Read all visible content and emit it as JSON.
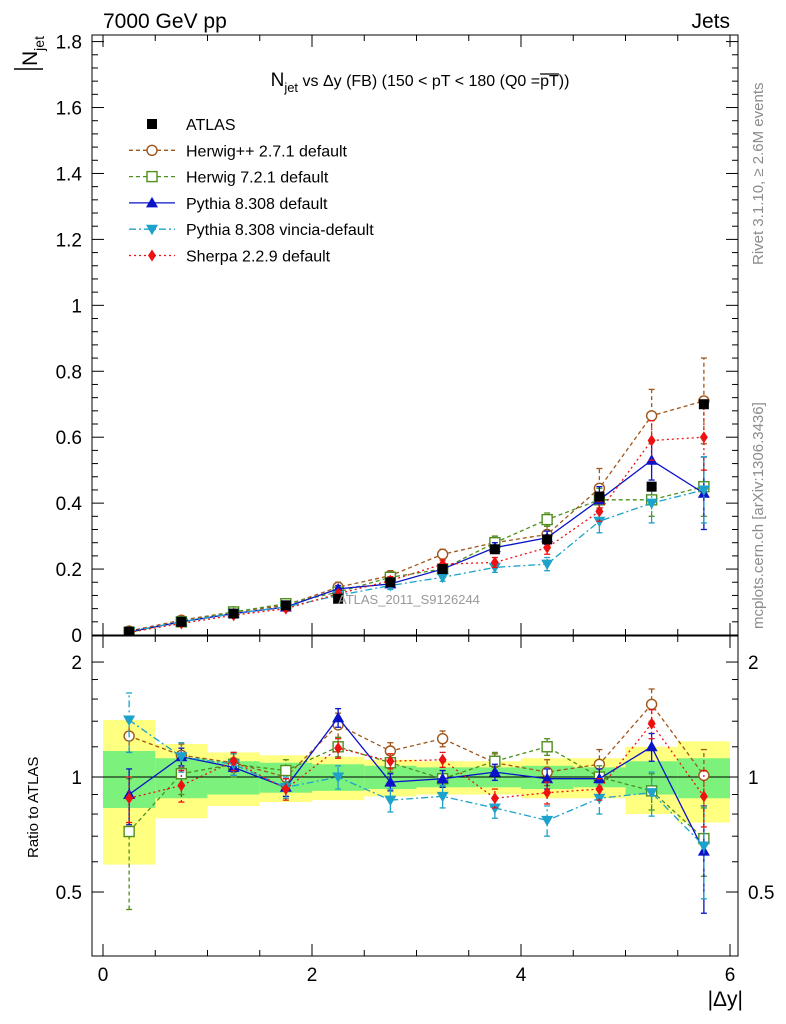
{
  "header": {
    "left": "7000 GeV pp",
    "right": "Jets"
  },
  "side_labels": {
    "rivet": "Rivet 3.1.10, ≥ 2.6M events",
    "mcplots": "mcplots.cern.ch [arXiv:1306.3436]"
  },
  "watermark": "ATLAS_2011_S9126244",
  "chart_data": {
    "type": "scatter",
    "title": {
      "main": "N",
      "sub": "jet",
      "rest": " vs Δy (FB) (150 < pT < 180 (Q0 =",
      "bar": "pT",
      "close": "))"
    },
    "ylabel": {
      "top": "N",
      "sub": "jet"
    },
    "xlabel": "|Δy|",
    "ratio_ylabel": "Ratio to ATLAS",
    "xlim": [
      -0.1,
      6.1
    ],
    "ylim": [
      0,
      1.82
    ],
    "ratio_ylim": [
      0.34,
      2.34
    ],
    "x_ticks": [
      0,
      2,
      4,
      6
    ],
    "y_ticks": [
      0,
      0.2,
      0.4,
      0.6,
      0.8,
      1,
      1.2,
      1.4,
      1.6,
      1.8
    ],
    "y_tick_labels": [
      "0",
      "0.2",
      "0.4",
      "0.6",
      "0.8",
      "1",
      "1.2",
      "1.4",
      "1.6",
      "1.8"
    ],
    "ratio_ticks": [
      0.5,
      1,
      2
    ],
    "ratio_tick_labels": [
      "0.5",
      "1",
      "2"
    ],
    "x": [
      0.25,
      0.75,
      1.25,
      1.75,
      2.25,
      2.75,
      3.25,
      3.75,
      4.25,
      4.75,
      5.25,
      5.75
    ],
    "bin_edges": [
      0,
      0.5,
      1,
      1.5,
      2,
      2.5,
      3,
      3.5,
      4,
      4.5,
      5,
      5.5,
      6
    ],
    "reference": {
      "name": "ATLAS",
      "color": "#000000",
      "marker": "square",
      "values": [
        0.01,
        0.04,
        0.065,
        0.09,
        0.11,
        0.16,
        0.2,
        0.26,
        0.29,
        0.42,
        0.45,
        0.7
      ],
      "band_green": [
        0.17,
        0.12,
        0.1,
        0.09,
        0.08,
        0.07,
        0.06,
        0.06,
        0.07,
        0.06,
        0.1,
        0.12
      ],
      "band_yellow": [
        0.41,
        0.22,
        0.16,
        0.14,
        0.13,
        0.11,
        0.1,
        0.1,
        0.12,
        0.12,
        0.2,
        0.24
      ]
    },
    "series": [
      {
        "name": "Herwig++ 2.7.1 default",
        "color": "#a0561a",
        "marker": "circle-open",
        "dash": "4,3",
        "values": [
          0.012,
          0.045,
          0.07,
          0.09,
          0.145,
          0.18,
          0.245,
          0.28,
          0.305,
          0.445,
          0.665,
          0.71
        ],
        "errors": [
          0.003,
          0.005,
          0.005,
          0.01,
          0.015,
          0.015,
          0.015,
          0.02,
          0.025,
          0.06,
          0.08,
          0.13
        ],
        "ratio": [
          1.28,
          1.14,
          1.09,
          1.0,
          1.37,
          1.17,
          1.26,
          1.09,
          1.03,
          1.08,
          1.55,
          1.01
        ],
        "ratio_errors": [
          0.12,
          0.08,
          0.06,
          0.07,
          0.1,
          0.06,
          0.06,
          0.06,
          0.08,
          0.1,
          0.15,
          0.17
        ]
      },
      {
        "name": "Herwig 7.2.1 default",
        "color": "#4e8f1e",
        "marker": "square-open",
        "dash": "4,3",
        "values": [
          0.008,
          0.04,
          0.07,
          0.095,
          0.13,
          0.175,
          0.2,
          0.28,
          0.35,
          0.41,
          0.41,
          0.45
        ],
        "errors": [
          0.003,
          0.005,
          0.005,
          0.01,
          0.01,
          0.015,
          0.015,
          0.02,
          0.02,
          0.035,
          0.05,
          0.09
        ],
        "ratio": [
          0.72,
          1.02,
          1.08,
          1.04,
          1.2,
          1.09,
          0.99,
          1.1,
          1.2,
          1.0,
          0.92,
          0.69
        ],
        "ratio_errors": [
          0.27,
          0.12,
          0.08,
          0.07,
          0.07,
          0.06,
          0.05,
          0.06,
          0.06,
          0.07,
          0.1,
          0.14
        ]
      },
      {
        "name": "Pythia 8.308 default",
        "color": "#0a13c8",
        "marker": "triangle-up",
        "dash": "",
        "values": [
          0.01,
          0.04,
          0.065,
          0.085,
          0.14,
          0.155,
          0.2,
          0.265,
          0.295,
          0.41,
          0.53,
          0.43
        ],
        "errors": [
          0.003,
          0.005,
          0.005,
          0.008,
          0.01,
          0.012,
          0.015,
          0.015,
          0.02,
          0.04,
          0.06,
          0.11
        ],
        "ratio": [
          0.9,
          1.13,
          1.06,
          0.94,
          1.43,
          0.97,
          0.99,
          1.03,
          0.99,
          0.99,
          1.2,
          0.64
        ],
        "ratio_errors": [
          0.15,
          0.06,
          0.05,
          0.05,
          0.08,
          0.05,
          0.05,
          0.05,
          0.06,
          0.06,
          0.1,
          0.2
        ]
      },
      {
        "name": "Pythia 8.308 vincia-default",
        "color": "#1da2c9",
        "marker": "triangle-down",
        "dash": "7,3,2,3",
        "values": [
          0.01,
          0.04,
          0.065,
          0.085,
          0.12,
          0.15,
          0.175,
          0.205,
          0.215,
          0.345,
          0.4,
          0.44
        ],
        "errors": [
          0.003,
          0.005,
          0.005,
          0.008,
          0.01,
          0.012,
          0.012,
          0.015,
          0.02,
          0.035,
          0.06,
          0.1
        ],
        "ratio": [
          1.41,
          1.13,
          1.08,
          0.94,
          1.0,
          0.87,
          0.89,
          0.83,
          0.77,
          0.88,
          0.91,
          0.66
        ],
        "ratio_errors": [
          0.25,
          0.1,
          0.07,
          0.06,
          0.07,
          0.06,
          0.06,
          0.05,
          0.07,
          0.08,
          0.12,
          0.18
        ]
      },
      {
        "name": "Sherpa 2.2.9 default",
        "color": "#ee1111",
        "marker": "diamond",
        "dash": "2,3",
        "values": [
          0.008,
          0.035,
          0.06,
          0.08,
          0.125,
          0.165,
          0.215,
          0.22,
          0.265,
          0.375,
          0.59,
          0.6
        ],
        "errors": [
          0.003,
          0.005,
          0.005,
          0.008,
          0.01,
          0.012,
          0.012,
          0.015,
          0.02,
          0.03,
          0.06,
          0.1
        ],
        "ratio": [
          0.88,
          0.95,
          1.1,
          0.93,
          1.19,
          1.1,
          1.11,
          0.88,
          0.91,
          0.93,
          1.38,
          0.89
        ],
        "ratio_errors": [
          0.12,
          0.09,
          0.06,
          0.06,
          0.07,
          0.05,
          0.05,
          0.05,
          0.06,
          0.06,
          0.12,
          0.15
        ]
      }
    ]
  }
}
